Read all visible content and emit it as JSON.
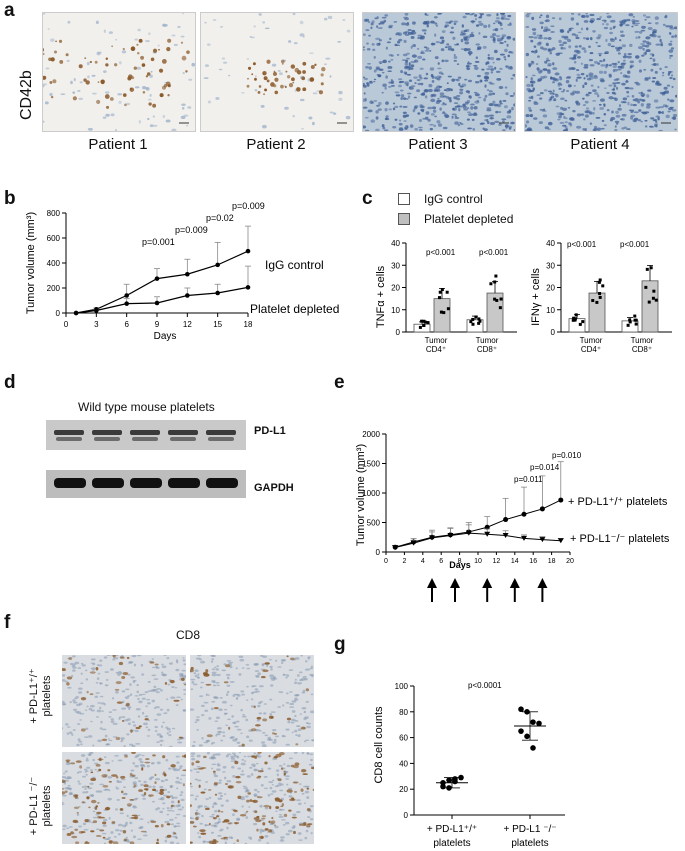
{
  "panel_labels": {
    "a": "a",
    "b": "b",
    "c": "c",
    "d": "d",
    "e": "e",
    "f": "f",
    "g": "g"
  },
  "panel_a": {
    "stain": "CD42b",
    "patients": [
      "Patient 1",
      "Patient 2",
      "Patient 3",
      "Patient 4"
    ],
    "colors": {
      "brown_bg": "#f2f0ec",
      "blue_bg": "#b9c9d8",
      "brown_dot": "#8a5a2b",
      "blue_dot": "#3f5f96"
    }
  },
  "panel_b": {
    "ylabel": "Tumor volume (mm³)",
    "xlabel": "Days",
    "series_labels": [
      "IgG control",
      "Platelet depleted"
    ],
    "pvalues": [
      "p=0.001",
      "p=0.009",
      "p=0.02",
      "p=0.009"
    ]
  },
  "panel_c": {
    "legend": [
      "IgG control",
      "Platelet depleted"
    ],
    "left_ylabel": "TNFα + cells",
    "right_ylabel": "IFNγ + cells",
    "groups": [
      [
        "Tumor",
        "CD4⁺"
      ],
      [
        "Tumor",
        "CD8⁺"
      ]
    ],
    "pvalues": [
      "p<0.001",
      "p<0.001",
      "p<0.001",
      "p<0.001"
    ]
  },
  "panel_d": {
    "title": "Wild type mouse platelets",
    "bands": [
      "PD-L1",
      "GAPDH"
    ]
  },
  "panel_e": {
    "ylabel": "Tumor volume (mm³)",
    "xlabel": "Days",
    "series_labels": [
      "+ PD-L1⁺/⁺ platelets",
      "+ PD-L1⁻/⁻ platelets"
    ],
    "pvalues": [
      "p=0.011",
      "p=0.014",
      "p=0.010"
    ]
  },
  "panel_f": {
    "stain": "CD8",
    "row_labels": [
      [
        "+ PD-L1⁺/⁺",
        "platelets"
      ],
      [
        "+ PD-L1 ⁻/⁻",
        "platelets"
      ]
    ]
  },
  "panel_g": {
    "ylabel": "CD8 cell counts",
    "pvalue": "p<0.0001",
    "groups": [
      [
        "+ PD-L1⁺/⁺",
        "platelets"
      ],
      [
        "+ PD-L1 ⁻/⁻",
        "platelets"
      ]
    ]
  },
  "chart_data": [
    {
      "type": "line",
      "panel": "b",
      "x": [
        1,
        3,
        6,
        9,
        12,
        15,
        18
      ],
      "series": [
        {
          "name": "IgG control",
          "values": [
            0,
            30,
            140,
            275,
            310,
            385,
            495
          ],
          "error": [
            0,
            10,
            90,
            80,
            120,
            180,
            200
          ]
        },
        {
          "name": "Platelet depleted",
          "values": [
            0,
            20,
            75,
            80,
            140,
            160,
            205
          ],
          "error": [
            0,
            10,
            40,
            50,
            60,
            70,
            170
          ]
        }
      ],
      "xlabel": "Days",
      "ylabel": "Tumor volume (mm³)",
      "xticks": [
        0,
        3,
        6,
        9,
        12,
        15,
        18
      ],
      "yticks": [
        0,
        200,
        400,
        600,
        800
      ],
      "xlim": [
        0,
        18
      ],
      "ylim": [
        0,
        800
      ]
    },
    {
      "type": "bar",
      "panel": "c-left",
      "categories": [
        "Tumor CD4⁺",
        "Tumor CD8⁺"
      ],
      "series": [
        {
          "name": "IgG control",
          "values": [
            3.5,
            5.5
          ]
        },
        {
          "name": "Platelet depleted",
          "values": [
            15,
            17.5
          ]
        }
      ],
      "ylabel": "TNFα + cells",
      "ylim": [
        0,
        40
      ],
      "yticks": [
        0,
        10,
        20,
        30,
        40
      ]
    },
    {
      "type": "bar",
      "panel": "c-right",
      "categories": [
        "Tumor CD4⁺",
        "Tumor CD8⁺"
      ],
      "series": [
        {
          "name": "IgG control",
          "values": [
            6,
            5
          ]
        },
        {
          "name": "Platelet depleted",
          "values": [
            17.5,
            23
          ]
        }
      ],
      "ylabel": "IFNγ + cells",
      "ylim": [
        0,
        40
      ],
      "yticks": [
        0,
        10,
        20,
        30,
        40
      ]
    },
    {
      "type": "line",
      "panel": "e",
      "x": [
        1,
        3,
        5,
        7,
        9,
        11,
        13,
        15,
        17,
        19
      ],
      "series": [
        {
          "name": "+ PD-L1⁺/⁺ platelets",
          "values": [
            80,
            170,
            250,
            290,
            340,
            420,
            550,
            640,
            730,
            880
          ],
          "error": [
            30,
            60,
            120,
            120,
            160,
            180,
            360,
            460,
            560,
            650
          ]
        },
        {
          "name": "+ PD-L1⁻/⁻ platelets",
          "values": [
            75,
            150,
            240,
            280,
            320,
            300,
            280,
            230,
            210,
            190
          ],
          "error": [
            30,
            50,
            100,
            120,
            140,
            90,
            80,
            60,
            50,
            40
          ]
        }
      ],
      "xlabel": "Days",
      "ylabel": "Tumor volume (mm³)",
      "xticks": [
        0,
        2,
        4,
        6,
        8,
        10,
        12,
        14,
        16,
        18,
        20
      ],
      "yticks": [
        0,
        500,
        1000,
        1500,
        2000
      ],
      "xlim": [
        0,
        20
      ],
      "ylim": [
        0,
        2000
      ]
    },
    {
      "type": "scatter",
      "panel": "g",
      "categories": [
        "+ PD-L1⁺/⁺ platelets",
        "+ PD-L1 ⁻/⁻ platelets"
      ],
      "series": [
        {
          "values": [
            25,
            27,
            28,
            29,
            22,
            21,
            26
          ],
          "mean": 25,
          "sd": 4
        },
        {
          "values": [
            82,
            80,
            72,
            71,
            65,
            61,
            52
          ],
          "mean": 69,
          "sd": 11
        }
      ],
      "ylabel": "CD8 cell counts",
      "ylim": [
        0,
        100
      ],
      "yticks": [
        0,
        20,
        40,
        60,
        80,
        100
      ]
    }
  ]
}
